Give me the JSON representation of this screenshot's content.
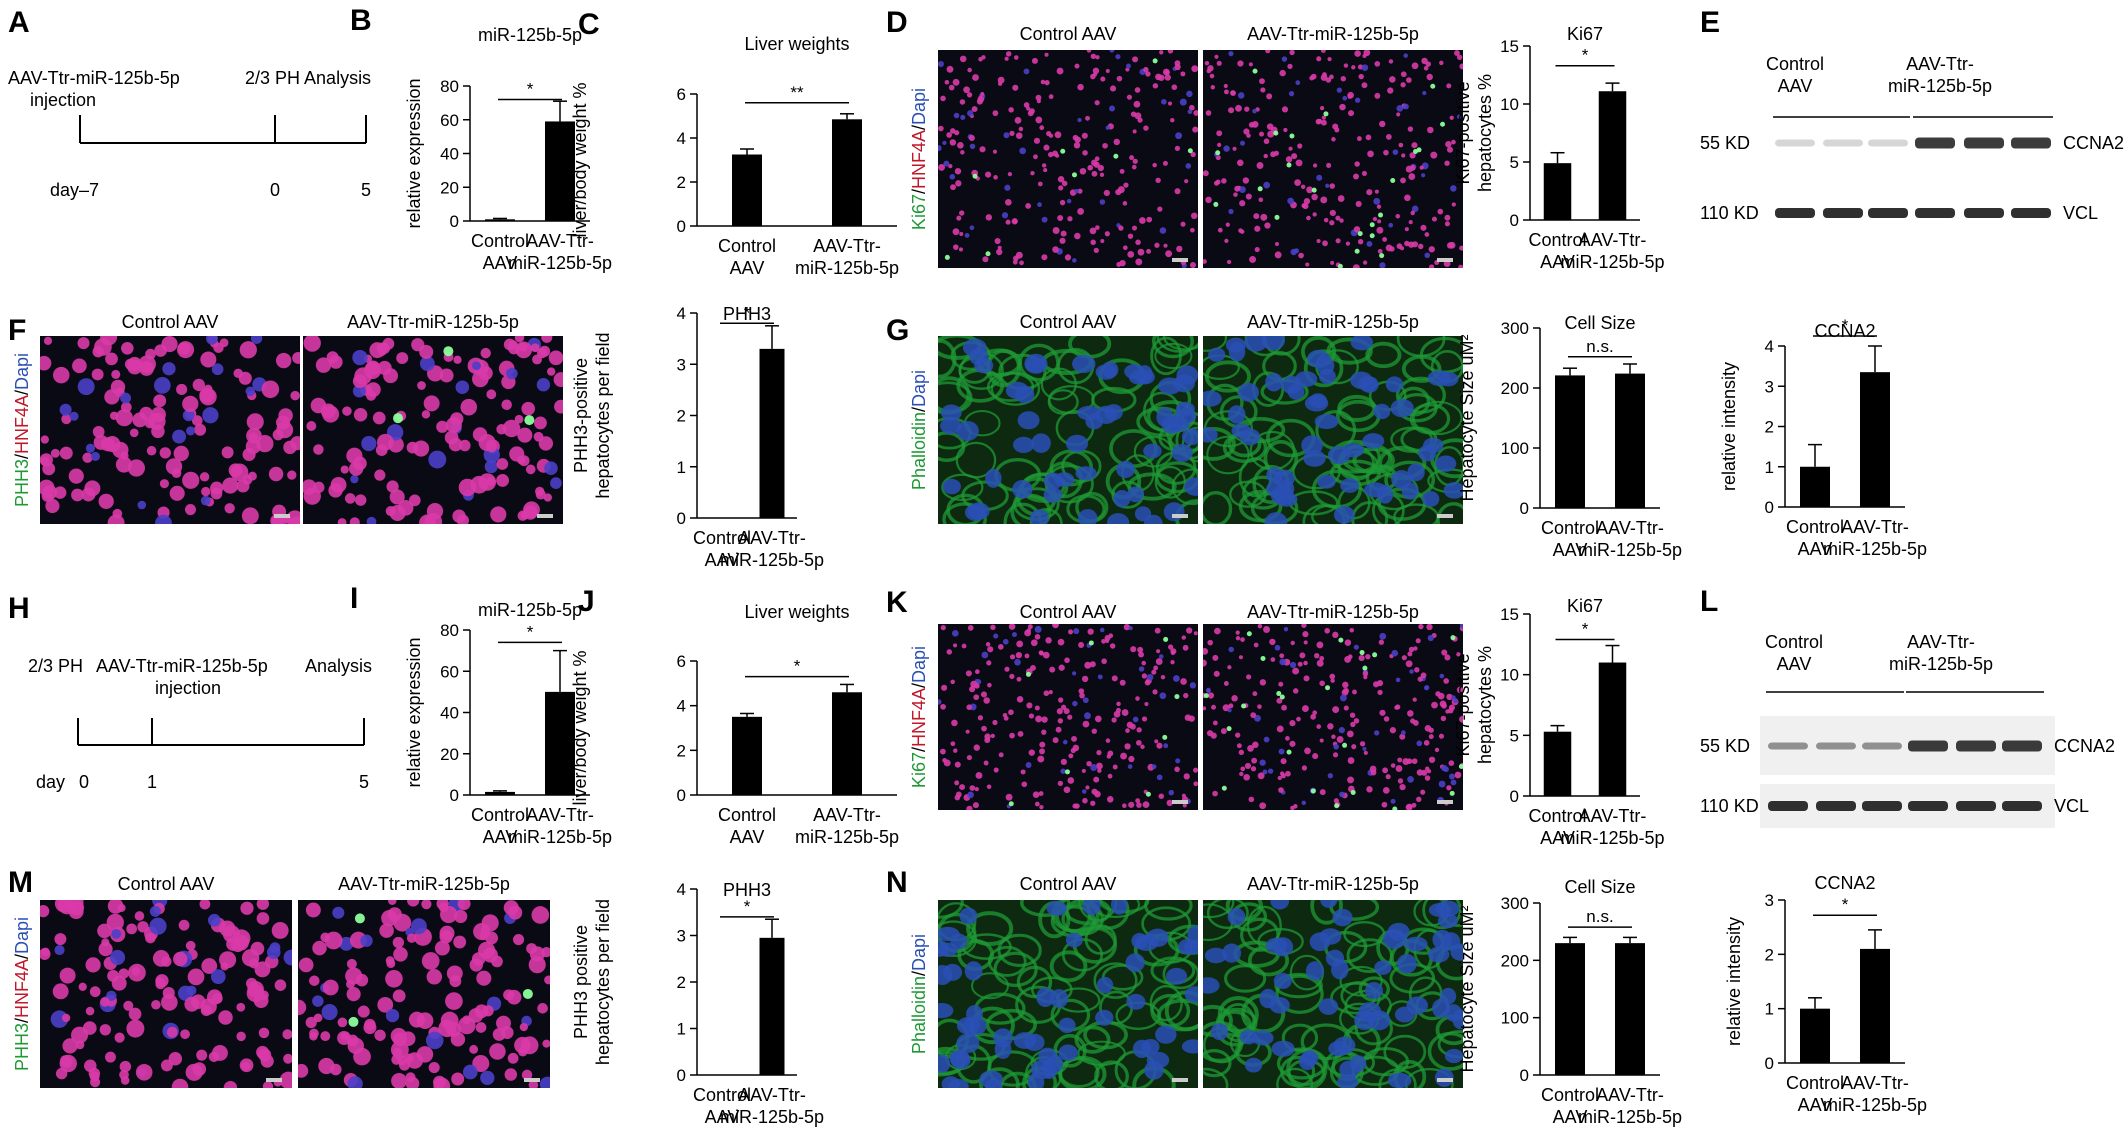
{
  "colors": {
    "bar": "#000000",
    "ki67_green": "#1e9a35",
    "hnf4a_red": "#c0182a",
    "dapi_blue": "#2a4fb5",
    "phalloidin_green": "#1e9a35",
    "micro_bg": "#0a0a14",
    "blot_band": "#1a1a1a"
  },
  "panels": {
    "A": {
      "letter": "A",
      "labels": [
        "AAV-Ttr-miR-125b-5p",
        "injection",
        "2/3 PH Analysis"
      ],
      "ticks": [
        "day–7",
        "0",
        "5"
      ]
    },
    "H": {
      "letter": "H",
      "labels": [
        "2/3 PH",
        "AAV-Ttr-miR-125b-5p",
        "injection",
        "Analysis"
      ],
      "ticks": [
        "day",
        "0",
        "1",
        "5"
      ]
    },
    "D": {
      "letter": "D",
      "col_titles": [
        "Control AAV",
        "AAV-Ttr-miR-125b-5p"
      ],
      "stain": [
        "Ki67",
        "/",
        "HNF4A",
        "/",
        "Dapi"
      ]
    },
    "F": {
      "letter": "F",
      "col_titles": [
        "Control AAV",
        "AAV-Ttr-miR-125b-5p"
      ],
      "stain": [
        "PHH3",
        "/",
        "HNF4A",
        "/",
        "Dapi"
      ]
    },
    "G": {
      "letter": "G",
      "col_titles": [
        "Control AAV",
        "AAV-Ttr-miR-125b-5p"
      ],
      "stain": [
        "Phalloidin",
        "/",
        "Dapi"
      ]
    },
    "K": {
      "letter": "K",
      "col_titles": [
        "Control AAV",
        "AAV-Ttr-miR-125b-5p"
      ],
      "stain": [
        "Ki67",
        "/",
        "HNF4A",
        "/",
        "Dapi"
      ]
    },
    "M": {
      "letter": "M",
      "col_titles": [
        "Control AAV",
        "AAV-Ttr-miR-125b-5p"
      ],
      "stain": [
        "PHH3",
        "/",
        "HNF4A",
        "/",
        "Dapi"
      ]
    },
    "N": {
      "letter": "N",
      "col_titles": [
        "Control AAV",
        "AAV-Ttr-miR-125b-5p"
      ],
      "stain": [
        "Phalloidin",
        "/",
        "Dapi"
      ]
    },
    "E": {
      "letter": "E",
      "groups": [
        [
          "Control",
          "AAV"
        ],
        [
          "AAV-Ttr-",
          "miR-125b-5p"
        ]
      ],
      "markers": [
        "55 KD",
        "110 KD"
      ],
      "proteins": [
        "CCNA2",
        "VCL"
      ]
    },
    "L": {
      "letter": "L",
      "groups": [
        [
          "Control",
          "AAV"
        ],
        [
          "AAV-Ttr-",
          "miR-125b-5p"
        ]
      ],
      "markers": [
        "55 KD",
        "110 KD"
      ],
      "proteins": [
        "CCNA2",
        "VCL"
      ]
    }
  },
  "chart_data": [
    {
      "id": "B",
      "letter": "B",
      "type": "bar",
      "title": "miR-125b-5p",
      "ylabel": [
        "relative expression"
      ],
      "categories": [
        [
          "Control",
          "AAV"
        ],
        [
          "AAV-Ttr-",
          "miR-125b-5p"
        ]
      ],
      "values": [
        1,
        59
      ],
      "errors": [
        0.5,
        12
      ],
      "ylim": [
        0,
        80
      ],
      "yticks": [
        0,
        20,
        40,
        60,
        80
      ],
      "sig": "*",
      "sig_y": 72
    },
    {
      "id": "C",
      "letter": "C",
      "type": "bar",
      "title": "Liver weights",
      "ylabel": [
        "liver/body weight %"
      ],
      "categories": [
        [
          "Control",
          "AAV"
        ],
        [
          "AAV-Ttr-",
          "miR-125b-5p"
        ]
      ],
      "values": [
        3.25,
        4.85
      ],
      "errors": [
        0.25,
        0.25
      ],
      "ylim": [
        0,
        6
      ],
      "yticks": [
        0,
        2,
        4,
        6
      ],
      "sig": "**",
      "sig_y": 5.6
    },
    {
      "id": "D",
      "letter": "",
      "type": "bar",
      "title": "Ki67",
      "ylabel": [
        "Ki67-positive",
        "hepatocytes %"
      ],
      "categories": [
        [
          "Control",
          "AAV"
        ],
        [
          "AAV-Ttr-",
          "miR-125b-5p"
        ]
      ],
      "values": [
        4.9,
        11.1
      ],
      "errors": [
        0.9,
        0.7
      ],
      "ylim": [
        0,
        15
      ],
      "yticks": [
        0,
        5,
        10,
        15
      ],
      "sig": "*",
      "sig_y": 13.3
    },
    {
      "id": "E",
      "letter": "",
      "type": "bar",
      "title": "CCNA2",
      "ylabel": [
        "relative intensity"
      ],
      "categories": [
        [
          "Control",
          "AAV"
        ],
        [
          "AAV-Ttr-",
          "miR-125b-5p"
        ]
      ],
      "values": [
        1,
        3.35
      ],
      "errors": [
        0.55,
        0.65
      ],
      "ylim": [
        0,
        4
      ],
      "yticks": [
        0,
        1,
        2,
        3,
        4
      ],
      "sig": "*",
      "sig_y": 4.25
    },
    {
      "id": "F",
      "letter": "",
      "type": "bar",
      "title": "PHH3",
      "ylabel": [
        "PHH3-positive",
        "hepatocytes per field"
      ],
      "categories": [
        [
          "Control",
          "AAV"
        ],
        [
          "AAV-Ttr-",
          "miR-125b-5p"
        ]
      ],
      "values": [
        0,
        3.3
      ],
      "errors": [
        0,
        0.45
      ],
      "ylim": [
        0,
        4
      ],
      "yticks": [
        0,
        1,
        2,
        3,
        4
      ],
      "sig": "*",
      "sig_y": 3.8
    },
    {
      "id": "G",
      "letter": "",
      "type": "bar",
      "title": "Cell Size",
      "ylabel": [
        "Hepatocyte Size uM²"
      ],
      "categories": [
        [
          "Control",
          "AAV"
        ],
        [
          "AAV-Ttr-",
          "miR-125b-5p"
        ]
      ],
      "values": [
        221,
        224
      ],
      "errors": [
        12,
        16
      ],
      "ylim": [
        0,
        300
      ],
      "yticks": [
        0,
        100,
        200,
        300
      ],
      "sig": "n.s.",
      "sig_y": 252
    },
    {
      "id": "I",
      "letter": "I",
      "type": "bar",
      "title": "miR-125b-5p",
      "ylabel": [
        "relative expression"
      ],
      "categories": [
        [
          "Control",
          "AAV"
        ],
        [
          "AAV-Ttr-",
          "miR-125b-5p"
        ]
      ],
      "values": [
        1.5,
        50
      ],
      "errors": [
        0.5,
        20
      ],
      "ylim": [
        0,
        80
      ],
      "yticks": [
        0,
        20,
        40,
        60,
        80
      ],
      "sig": "*",
      "sig_y": 74
    },
    {
      "id": "J",
      "letter": "J",
      "type": "bar",
      "title": "Liver weights",
      "ylabel": [
        "liver/body weight %"
      ],
      "categories": [
        [
          "Control",
          "AAV"
        ],
        [
          "AAV-Ttr-",
          "miR-125b-5p"
        ]
      ],
      "values": [
        3.5,
        4.6
      ],
      "errors": [
        0.15,
        0.35
      ],
      "ylim": [
        0,
        6
      ],
      "yticks": [
        0,
        2,
        4,
        6
      ],
      "sig": "*",
      "sig_y": 5.3
    },
    {
      "id": "K",
      "letter": "",
      "type": "bar",
      "title": "Ki67",
      "ylabel": [
        "Ki67-positive",
        "hepatocytes %"
      ],
      "categories": [
        [
          "Control",
          "AAV"
        ],
        [
          "AAV-Ttr-",
          "miR-125b-5p"
        ]
      ],
      "values": [
        5.3,
        11
      ],
      "errors": [
        0.5,
        1.4
      ],
      "ylim": [
        0,
        15
      ],
      "yticks": [
        0,
        5,
        10,
        15
      ],
      "sig": "*",
      "sig_y": 12.9
    },
    {
      "id": "L",
      "letter": "",
      "type": "bar",
      "title": "CCNA2",
      "ylabel": [
        "relative intensity"
      ],
      "categories": [
        [
          "Control",
          "AAV"
        ],
        [
          "AAV-Ttr-",
          "miR-125b-5p"
        ]
      ],
      "values": [
        1,
        2.1
      ],
      "errors": [
        0.2,
        0.35
      ],
      "ylim": [
        0,
        3
      ],
      "yticks": [
        0,
        1,
        2,
        3
      ],
      "sig": "*",
      "sig_y": 2.72
    },
    {
      "id": "M",
      "letter": "",
      "type": "bar",
      "title": "PHH3",
      "ylabel": [
        "PHH3 positive",
        "hepatocytes per field"
      ],
      "categories": [
        [
          "Control",
          "AAV"
        ],
        [
          "AAV-Ttr-",
          "miR-125b-5p"
        ]
      ],
      "values": [
        0,
        2.95
      ],
      "errors": [
        0,
        0.4
      ],
      "ylim": [
        0,
        4
      ],
      "yticks": [
        0,
        1,
        2,
        3,
        4
      ],
      "sig": "*",
      "sig_y": 3.4
    },
    {
      "id": "N",
      "letter": "",
      "type": "bar",
      "title": "Cell Size",
      "ylabel": [
        "Hepatocyte Size uM²"
      ],
      "categories": [
        [
          "Control",
          "AAV"
        ],
        [
          "AAV-Ttr-",
          "miR-125b-5p"
        ]
      ],
      "values": [
        230,
        230
      ],
      "errors": [
        10,
        10
      ],
      "ylim": [
        0,
        300
      ],
      "yticks": [
        0,
        100,
        200,
        300
      ],
      "sig": "n.s.",
      "sig_y": 258
    }
  ]
}
